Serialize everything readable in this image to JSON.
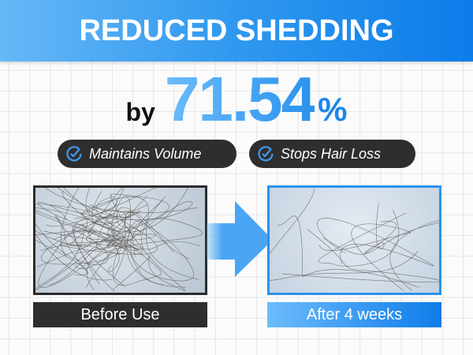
{
  "header": {
    "title": "REDUCED SHEDDING"
  },
  "stat": {
    "prefix": "by",
    "value": "71.54",
    "unit": "%"
  },
  "badges": [
    {
      "label": "Maintains Volume",
      "icon": "check-circle-icon"
    },
    {
      "label": "Stops Hair Loss",
      "icon": "check-circle-icon"
    }
  ],
  "comparison": {
    "before_label": "Before Use",
    "after_label": "After 4 weeks"
  },
  "colors": {
    "accent": "#2a92ee",
    "dark": "#2e2e2e"
  }
}
